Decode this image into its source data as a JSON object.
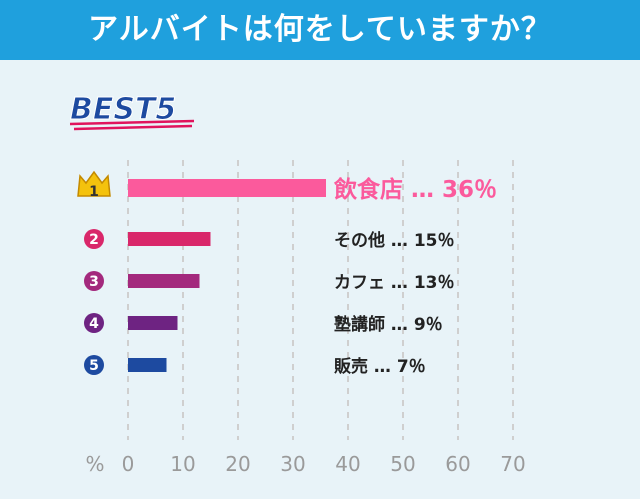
{
  "title": "アルバイトは何をしていますか？",
  "badge_text": "BEST5",
  "chart_data": {
    "type": "bar",
    "orientation": "horizontal",
    "categories": [
      "飲食店",
      "その他",
      "カフェ",
      "塾講師",
      "販売"
    ],
    "values": [
      36,
      15,
      13,
      9,
      7
    ],
    "value_labels": [
      "36％",
      "15％",
      "13％",
      "9％",
      "7％"
    ],
    "separator": "…",
    "ranks": [
      "1",
      "2",
      "3",
      "4",
      "5"
    ],
    "colors": [
      "#fb5a9c",
      "#d9276a",
      "#a3297d",
      "#6e2382",
      "#1d4aa0"
    ],
    "xlim": [
      0,
      70
    ],
    "ticks": [
      0,
      10,
      20,
      30,
      40,
      50,
      60,
      70
    ],
    "unit_label": "%",
    "grid": true,
    "grid_style": "vertical dashed"
  },
  "colors": {
    "header": "#1fa0dd",
    "background": "#e8f3f8",
    "badge": "#1d4aa0",
    "crown": "#f4c20d"
  }
}
